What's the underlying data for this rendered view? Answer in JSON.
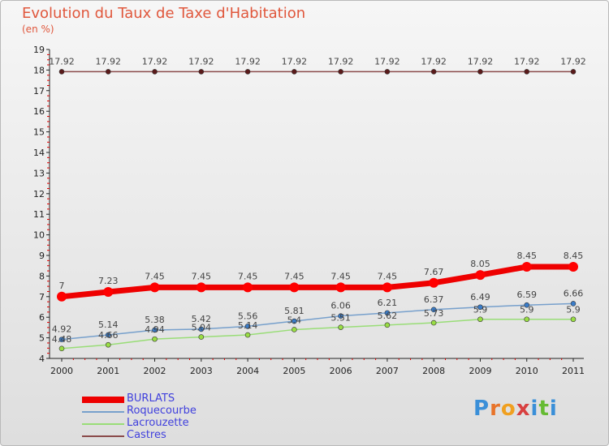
{
  "header": {
    "title": "Evolution du Taux de Taxe d'Habitation",
    "subtitle": "(en %)"
  },
  "logo": {
    "text": "Proxiti"
  },
  "chart_data": {
    "type": "line",
    "title": "Evolution du Taux de Taxe d'Habitation",
    "ylabel": "(en %)",
    "xlabel": "",
    "categories": [
      "2000",
      "2001",
      "2002",
      "2003",
      "2004",
      "2005",
      "2006",
      "2007",
      "2008",
      "2009",
      "2010",
      "2011"
    ],
    "ylim": [
      4,
      19
    ],
    "yticks": [
      4,
      5,
      6,
      7,
      8,
      9,
      10,
      11,
      12,
      13,
      14,
      15,
      16,
      17,
      18,
      19
    ],
    "grid": false,
    "legend_position": "bottom-left",
    "series": [
      {
        "name": "BURLATS",
        "color": "#ff0000",
        "values": [
          7,
          7.23,
          7.45,
          7.45,
          7.45,
          7.45,
          7.45,
          7.45,
          7.67,
          8.05,
          8.45,
          8.45
        ],
        "labels": [
          "7",
          "7.23",
          "7.45",
          "7.45",
          "7.45",
          "7.45",
          "7.45",
          "7.45",
          "7.67",
          "8.05",
          "8.45",
          "8.45"
        ]
      },
      {
        "name": "Roquecourbe",
        "color": "#77a0cc",
        "values": [
          4.92,
          5.14,
          5.38,
          5.42,
          5.56,
          5.81,
          6.06,
          6.21,
          6.37,
          6.49,
          6.59,
          6.66
        ],
        "labels": [
          "4.92",
          "5.14",
          "5.38",
          "5.42",
          "5.56",
          "5.81",
          "6.06",
          "6.21",
          "6.37",
          "6.49",
          "6.59",
          "6.66"
        ]
      },
      {
        "name": "Lacrouzette",
        "color": "#99dd77",
        "values": [
          4.48,
          4.66,
          4.94,
          5.04,
          5.14,
          5.4,
          5.51,
          5.62,
          5.73,
          5.9,
          5.9,
          5.9
        ],
        "labels": [
          "4.48",
          "4.66",
          "4.94",
          "5.04",
          "5.14",
          "5.4",
          "5.51",
          "5.62",
          "5.73",
          "5.9",
          "5.9",
          "5.9"
        ]
      },
      {
        "name": "Castres",
        "color": "#8a4a4a",
        "values": [
          17.92,
          17.92,
          17.92,
          17.92,
          17.92,
          17.92,
          17.92,
          17.92,
          17.92,
          17.92,
          17.92,
          17.92
        ],
        "labels": [
          "17.92",
          "17.92",
          "17.92",
          "17.92",
          "17.92",
          "17.92",
          "17.92",
          "17.92",
          "17.92",
          "17.92",
          "17.92",
          "17.92"
        ]
      }
    ]
  }
}
